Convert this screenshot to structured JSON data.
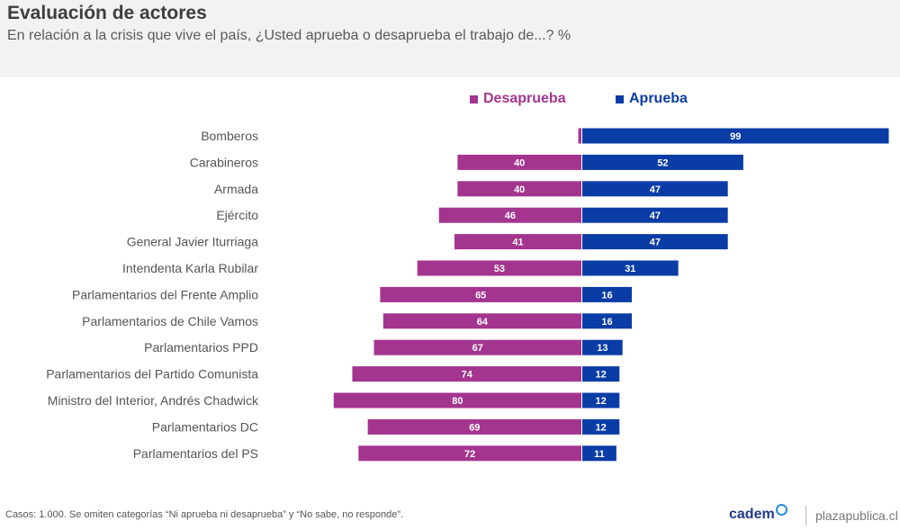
{
  "header": {
    "title": "Evaluación de actores",
    "subtitle": "En relación a la crisis que vive el país, ¿Usted aprueba o desaprueba el trabajo de...? %"
  },
  "legend": {
    "disapprove_label": "Desaprueba",
    "approve_label": "Aprueba"
  },
  "footer": {
    "note": "Casos: 1.000. Se omiten categorías “Ni aprueba ni desaprueba” y “No sabe, no responde”.",
    "logo": "cadem",
    "site": "plazapublica.cl"
  },
  "colors": {
    "disapprove": "#a4358f",
    "approve": "#0a3ca6"
  },
  "chart_data": {
    "type": "bar",
    "orientation": "horizontal-diverging",
    "title": "Evaluación de actores",
    "categories": [
      "Bomberos",
      "Carabineros",
      "Armada",
      "Ejército",
      "General Javier Iturriaga",
      "Intendenta Karla Rubilar",
      "Parlamentarios del Frente Amplio",
      "Parlamentarios de Chile Vamos",
      "Parlamentarios PPD",
      "Parlamentarios del Partido Comunista",
      "Ministro del Interior, Andrés Chadwick",
      "Parlamentarios DC",
      "Parlamentarios del PS"
    ],
    "series": [
      {
        "name": "Desaprueba",
        "values": [
          1,
          40,
          40,
          46,
          41,
          53,
          65,
          64,
          67,
          74,
          80,
          69,
          72
        ],
        "labels": [
          "",
          "40",
          "40",
          "46",
          "41",
          "53",
          "65",
          "64",
          "67",
          "74",
          "80",
          "69",
          "72"
        ]
      },
      {
        "name": "Aprueba",
        "values": [
          99,
          52,
          47,
          47,
          47,
          31,
          16,
          16,
          13,
          12,
          12,
          12,
          11
        ],
        "labels": [
          "99",
          "52",
          "47",
          "47",
          "47",
          "31",
          "16",
          "16",
          "13",
          "12",
          "12",
          "12",
          "11"
        ]
      }
    ],
    "xlabel": "",
    "ylabel": "",
    "xlim": [
      0,
      100
    ]
  }
}
